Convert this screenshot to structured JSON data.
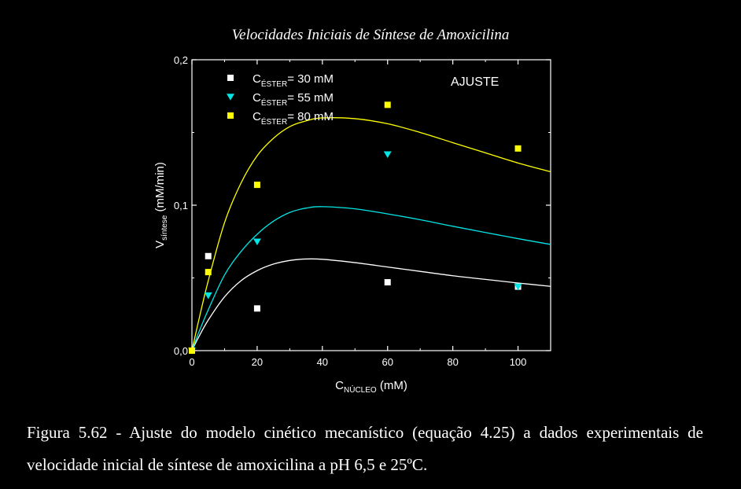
{
  "chart_data": {
    "type": "scatter",
    "title": "Velocidades Iniciais de Síntese de Amoxicilina",
    "xlabel": "C",
    "xlabel_sub": "NÚCLEO",
    "xlabel_unit": "(mM)",
    "ylabel": "V",
    "ylabel_sub": "síntese",
    "ylabel_unit": "(mM/min)",
    "xlim": [
      0,
      110
    ],
    "ylim": [
      0,
      0.2
    ],
    "xticks": [
      0,
      20,
      40,
      60,
      80,
      100
    ],
    "xtick_labels": [
      "0",
      "20",
      "40",
      "60",
      "80",
      "100"
    ],
    "yticks": [
      0,
      0.1,
      0.2
    ],
    "ytick_labels": [
      "0,0",
      "0,1",
      "0,2"
    ],
    "annotation": "AJUSTE",
    "legend_position": "top-left",
    "series": [
      {
        "legend_prefix": "C",
        "legend_sub": "ÉSTER",
        "legend_suffix": "= 30 mM",
        "marker": "square",
        "color": "#ffffff",
        "x": [
          0,
          5,
          20,
          60,
          100
        ],
        "y": [
          0.0,
          0.065,
          0.029,
          0.047,
          0.044
        ],
        "fit": {
          "color": "#ffffff",
          "x": [
            0,
            2,
            5,
            10,
            15,
            20,
            25,
            30,
            35,
            40,
            50,
            60,
            70,
            80,
            90,
            100,
            110
          ],
          "y": [
            0,
            0.009,
            0.021,
            0.037,
            0.048,
            0.055,
            0.0595,
            0.062,
            0.063,
            0.0628,
            0.0605,
            0.0575,
            0.0545,
            0.0515,
            0.049,
            0.0465,
            0.0442
          ]
        }
      },
      {
        "legend_prefix": "C",
        "legend_sub": "ÉSTER",
        "legend_suffix": "= 55 mM",
        "marker": "triangle-down",
        "color": "#00e5e5",
        "x": [
          0,
          5,
          20,
          60,
          100
        ],
        "y": [
          0.0,
          0.038,
          0.075,
          0.135,
          0.044
        ],
        "fit": {
          "color": "#00e5e5",
          "x": [
            0,
            2,
            5,
            10,
            15,
            20,
            25,
            30,
            35,
            40,
            50,
            60,
            70,
            80,
            90,
            100,
            110
          ],
          "y": [
            0,
            0.012,
            0.028,
            0.052,
            0.068,
            0.08,
            0.089,
            0.095,
            0.098,
            0.099,
            0.0975,
            0.094,
            0.09,
            0.0855,
            0.0812,
            0.077,
            0.073
          ]
        }
      },
      {
        "legend_prefix": "C",
        "legend_sub": "ÉSTER",
        "legend_suffix": "= 80 mM",
        "marker": "square",
        "color": "#ffff00",
        "x": [
          0,
          5,
          20,
          60,
          100
        ],
        "y": [
          0.0,
          0.054,
          0.114,
          0.169,
          0.139
        ],
        "fit": {
          "color": "#ffff00",
          "x": [
            0,
            2,
            5,
            10,
            15,
            20,
            25,
            30,
            35,
            40,
            50,
            60,
            70,
            80,
            90,
            100,
            110
          ],
          "y": [
            0,
            0.02,
            0.048,
            0.088,
            0.115,
            0.134,
            0.146,
            0.154,
            0.158,
            0.16,
            0.1595,
            0.156,
            0.15,
            0.143,
            0.136,
            0.129,
            0.123
          ]
        }
      }
    ]
  },
  "caption": "Figura 5.62 - Ajuste do modelo cinético mecanístico (equação 4.25) a dados experimentais de velocidade inicial de síntese de amoxicilina a pH 6,5 e 25ºC."
}
